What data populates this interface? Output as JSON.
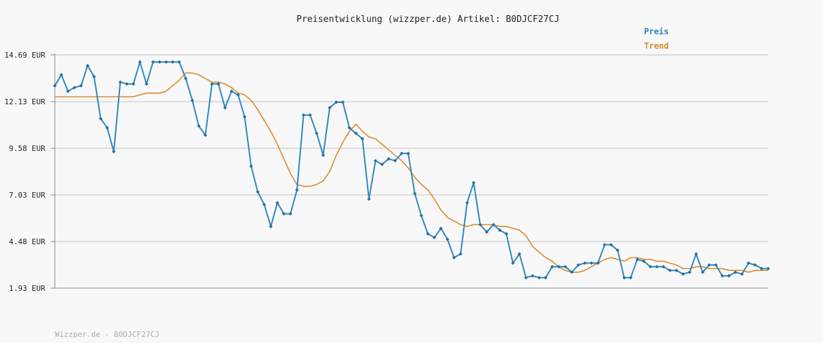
{
  "chart_data": {
    "type": "line",
    "title": "Preisentwicklung (wizzper.de) Artikel: B0DJCF27CJ",
    "footer": "Wizzper.de - B0DJCF27CJ",
    "ylabel": "",
    "xlabel": "",
    "y_ticks": [
      "1.93 EUR",
      "4.48 EUR",
      "7.03 EUR",
      "9.58 EUR",
      "12.13 EUR",
      "14.69 EUR"
    ],
    "ylim": [
      1.93,
      14.69
    ],
    "grid": true,
    "legend_position": "top-right",
    "series": [
      {
        "name": "Preis",
        "color": "#2e86c1",
        "values": [
          13.0,
          13.6,
          12.7,
          12.9,
          13.0,
          14.1,
          13.5,
          11.2,
          10.7,
          9.4,
          13.2,
          13.1,
          13.1,
          14.3,
          13.1,
          14.3,
          14.3,
          14.3,
          14.3,
          14.3,
          13.4,
          12.2,
          10.8,
          10.3,
          13.1,
          13.1,
          11.8,
          12.7,
          12.5,
          11.3,
          8.6,
          7.2,
          6.5,
          5.3,
          6.6,
          6.0,
          6.0,
          7.3,
          11.4,
          11.4,
          10.4,
          9.2,
          11.8,
          12.1,
          12.1,
          10.7,
          10.4,
          10.1,
          6.8,
          8.9,
          8.7,
          9.0,
          8.9,
          9.3,
          9.3,
          7.1,
          5.9,
          4.9,
          4.7,
          5.2,
          4.6,
          3.6,
          3.8,
          6.6,
          7.7,
          5.4,
          5.0,
          5.4,
          5.1,
          4.9,
          3.3,
          3.8,
          2.5,
          2.6,
          2.5,
          2.5,
          3.1,
          3.1,
          3.1,
          2.8,
          3.2,
          3.3,
          3.3,
          3.3,
          4.3,
          4.3,
          4.0,
          2.5,
          2.5,
          3.5,
          3.4,
          3.1,
          3.1,
          3.1,
          2.9,
          2.9,
          2.7,
          2.8,
          3.8,
          2.8,
          3.2,
          3.2,
          2.6,
          2.6,
          2.8,
          2.7,
          3.3,
          3.2,
          3.0,
          3.0
        ]
      },
      {
        "name": "Trend",
        "color": "#d98a2b",
        "values": [
          12.4,
          12.4,
          12.4,
          12.4,
          12.4,
          12.4,
          12.4,
          12.4,
          12.4,
          12.4,
          12.4,
          12.4,
          12.4,
          12.5,
          12.6,
          12.6,
          12.6,
          12.7,
          13.0,
          13.3,
          13.7,
          13.7,
          13.6,
          13.4,
          13.2,
          13.2,
          13.1,
          12.9,
          12.6,
          12.5,
          12.2,
          11.7,
          11.1,
          10.5,
          9.8,
          9.0,
          8.2,
          7.6,
          7.5,
          7.5,
          7.6,
          7.8,
          8.3,
          9.2,
          9.9,
          10.5,
          10.9,
          10.5,
          10.2,
          10.1,
          9.8,
          9.5,
          9.2,
          8.9,
          8.5,
          8.0,
          7.6,
          7.3,
          6.8,
          6.2,
          5.8,
          5.6,
          5.4,
          5.3,
          5.4,
          5.4,
          5.4,
          5.4,
          5.3,
          5.3,
          5.2,
          5.1,
          4.8,
          4.2,
          3.9,
          3.6,
          3.4,
          3.1,
          2.9,
          2.8,
          2.8,
          2.9,
          3.1,
          3.3,
          3.5,
          3.6,
          3.5,
          3.4,
          3.6,
          3.6,
          3.5,
          3.5,
          3.4,
          3.4,
          3.3,
          3.2,
          3.0,
          3.0,
          3.1,
          3.1,
          3.0,
          3.0,
          3.0,
          2.9,
          2.9,
          2.9,
          2.8,
          2.9,
          2.9,
          2.9
        ]
      }
    ]
  }
}
